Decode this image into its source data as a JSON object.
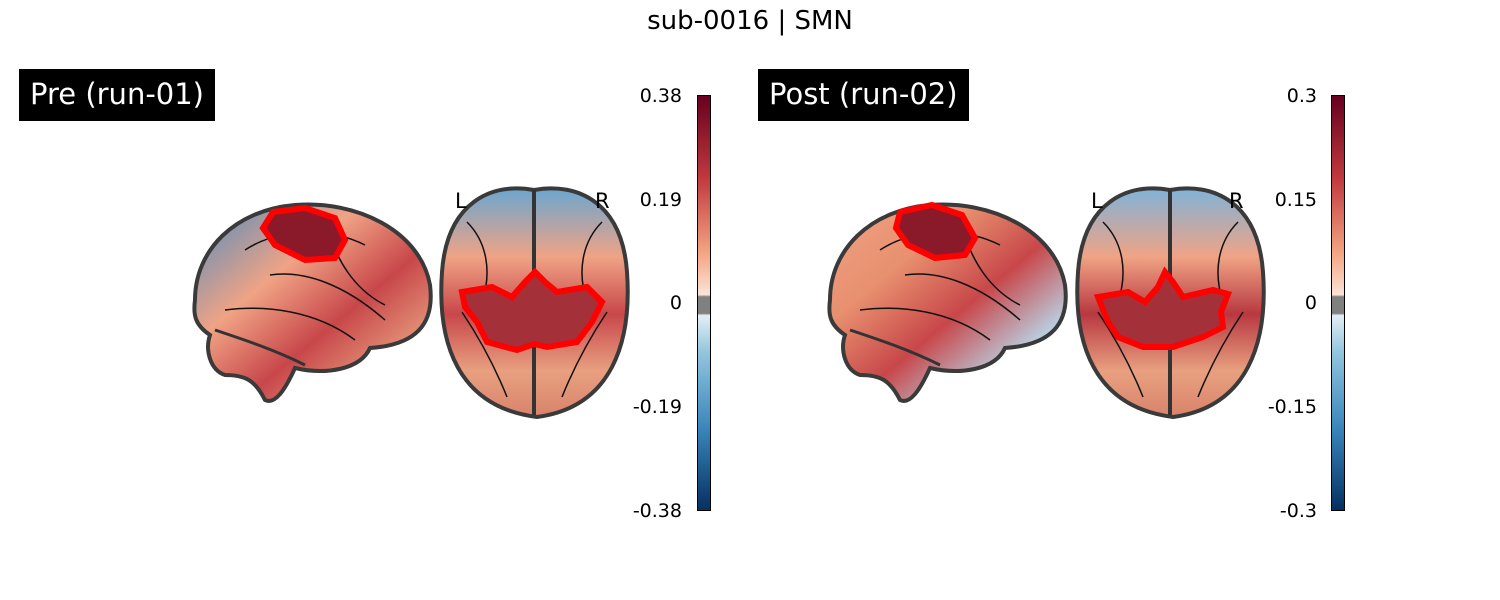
{
  "title": "sub-0016 | SMN",
  "panels": [
    {
      "label": "Pre (run-01)",
      "colorbar": {
        "ticks": [
          "0.38",
          "0.19",
          "0",
          "-0.19",
          "-0.38"
        ]
      },
      "orientation": {
        "left": "L",
        "right": "R"
      }
    },
    {
      "label": "Post (run-02)",
      "colorbar": {
        "ticks": [
          "0.3",
          "0.15",
          "0",
          "-0.15",
          "-0.3"
        ]
      },
      "orientation": {
        "left": "L",
        "right": "R"
      }
    }
  ],
  "colors": {
    "roi_outline": "#ff0000",
    "cmap_high": "#67001f",
    "cmap_mid_pos": "#f4a582",
    "cmap_zero": "#808080",
    "cmap_mid_neg": "#92c5de",
    "cmap_low": "#053061"
  }
}
